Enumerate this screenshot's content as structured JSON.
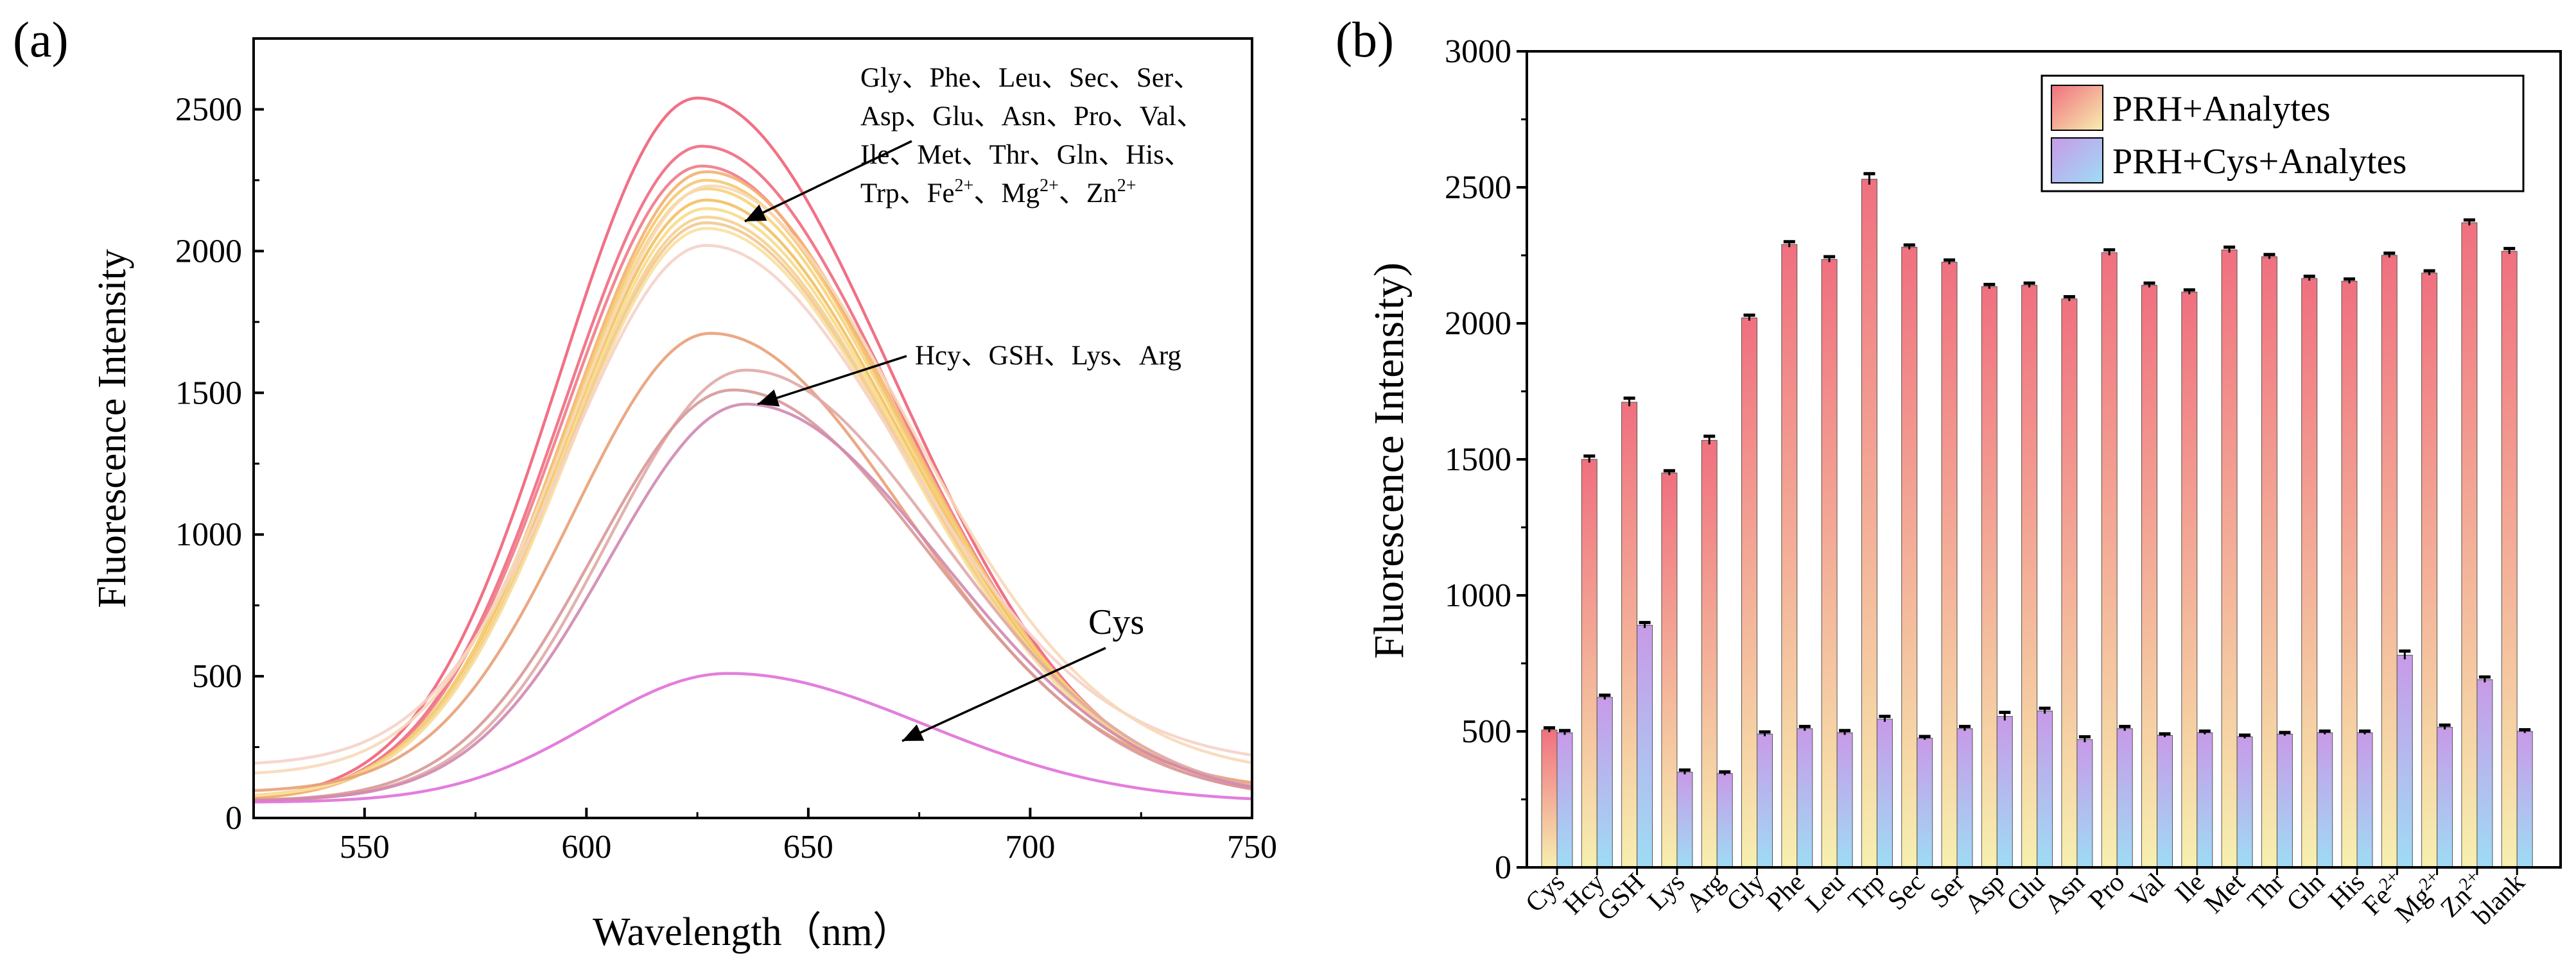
{
  "chart_data": [
    {
      "type": "line",
      "panel_label": "(a)",
      "xlabel": "Wavelength（nm）",
      "ylabel": "Fluorescence Intensity",
      "xlim": [
        525,
        750
      ],
      "ylim": [
        0,
        2750
      ],
      "xticks": [
        550,
        600,
        650,
        700,
        750
      ],
      "yticks": [
        0,
        500,
        1000,
        1500,
        2000,
        2500
      ],
      "grid": false,
      "series": [
        {
          "name": "curve-1",
          "peak_x": 625,
          "peak": 2540,
          "base": 60,
          "color": "#f06078"
        },
        {
          "name": "curve-2",
          "peak_x": 626,
          "peak": 2370,
          "base": 60,
          "color": "#f06a80"
        },
        {
          "name": "curve-3",
          "peak_x": 626,
          "peak": 2300,
          "base": 60,
          "color": "#f07a88"
        },
        {
          "name": "curve-4",
          "peak_x": 627,
          "peak": 2280,
          "base": 60,
          "color": "#f3b070"
        },
        {
          "name": "curve-5",
          "peak_x": 627,
          "peak": 2250,
          "base": 70,
          "color": "#f5c870"
        },
        {
          "name": "curve-6",
          "peak_x": 627,
          "peak": 2220,
          "base": 70,
          "color": "#f6d47a"
        },
        {
          "name": "curve-7",
          "peak_x": 627,
          "peak": 2180,
          "base": 70,
          "color": "#f3c060"
        },
        {
          "name": "curve-8",
          "peak_x": 627,
          "peak": 2150,
          "base": 70,
          "color": "#f7dc8a"
        },
        {
          "name": "curve-9",
          "peak_x": 627,
          "peak": 2120,
          "base": 70,
          "color": "#f5d090"
        },
        {
          "name": "curve-10",
          "peak_x": 627,
          "peak": 2100,
          "base": 70,
          "color": "#f2c890"
        },
        {
          "name": "curve-11",
          "peak_x": 627,
          "peak": 2080,
          "base": 70,
          "color": "#f8e0a0"
        },
        {
          "name": "curve-12",
          "peak_x": 627,
          "peak": 2020,
          "base": 185,
          "color": "#f5d2c8"
        },
        {
          "name": "curve-13",
          "peak_x": 628,
          "peak": 2230,
          "base": 150,
          "color": "#f8d8b8"
        },
        {
          "name": "Hcy",
          "peak_x": 628,
          "peak": 1710,
          "base": 90,
          "color": "#e8a078"
        },
        {
          "name": "GSH",
          "peak_x": 636,
          "peak": 1580,
          "base": 60,
          "color": "#e0a8a8"
        },
        {
          "name": "Lys",
          "peak_x": 633,
          "peak": 1510,
          "base": 60,
          "color": "#d89898"
        },
        {
          "name": "Arg",
          "peak_x": 636,
          "peak": 1460,
          "base": 60,
          "color": "#d088b0"
        },
        {
          "name": "Cys",
          "peak_x": 632,
          "peak": 510,
          "base": 55,
          "color": "#e070d8"
        }
      ],
      "annotations": [
        {
          "text_lines": [
            "Gly、Phe、Leu、Sec、Ser、",
            "Asp、Glu、Asn、Pro、Val、",
            "Ile、Met、Thr、Gln、His、"
          ],
          "last_line": {
            "prefix": "Trp、Fe",
            "sup1": "2+",
            "mid1": "、Mg",
            "sup2": "2+",
            "mid2": "、Zn",
            "sup3": "2+"
          },
          "arrow_to": [
            636,
            2090
          ]
        },
        {
          "text": "Hcy、GSH、Lys、Arg",
          "arrow_to": [
            634,
            1490
          ]
        },
        {
          "text": "Cys",
          "arrow_to": [
            672,
            280
          ]
        }
      ]
    },
    {
      "type": "bar",
      "panel_label": "(b)",
      "xlabel": "",
      "ylabel": "Fluorescence Intensity)",
      "ylim": [
        0,
        3000
      ],
      "yticks": [
        0,
        500,
        1000,
        1500,
        2000,
        2500,
        3000
      ],
      "grid": false,
      "legend_position": "top-right",
      "categories": [
        "Cys",
        "Hcy",
        "GSH",
        "Lys",
        "Arg",
        "Gly",
        "Phe",
        "Leu",
        "Trp",
        "Sec",
        "Ser",
        "Asp",
        "Glu",
        "Asn",
        "Pro",
        "Val",
        "Ile",
        "Met",
        "Thr",
        "Gln",
        "His",
        "Fe2+",
        "Mg2+",
        "Zn2+",
        "blank"
      ],
      "category_labels": [
        {
          "base": "Cys"
        },
        {
          "base": "Hcy"
        },
        {
          "base": "GSH"
        },
        {
          "base": "Lys"
        },
        {
          "base": "Arg"
        },
        {
          "base": "Gly"
        },
        {
          "base": "Phe"
        },
        {
          "base": "Leu"
        },
        {
          "base": "Trp"
        },
        {
          "base": "Sec"
        },
        {
          "base": "Ser"
        },
        {
          "base": "Asp"
        },
        {
          "base": "Glu"
        },
        {
          "base": "Asn"
        },
        {
          "base": "Pro"
        },
        {
          "base": "Val"
        },
        {
          "base": "Ile"
        },
        {
          "base": "Met"
        },
        {
          "base": "Thr"
        },
        {
          "base": "Gln"
        },
        {
          "base": "His"
        },
        {
          "base": "Fe",
          "sup": "2+"
        },
        {
          "base": "Mg",
          "sup": "2+"
        },
        {
          "base": "Zn",
          "sup": "2+"
        },
        {
          "base": "blank"
        }
      ],
      "series": [
        {
          "name": "PRH+Analytes",
          "color_top": "#f0707f",
          "color_bottom": "#f7efb0",
          "values": [
            505,
            1500,
            1710,
            1450,
            1570,
            2020,
            2290,
            2235,
            2530,
            2280,
            2225,
            2135,
            2140,
            2090,
            2260,
            2140,
            2115,
            2270,
            2245,
            2165,
            2155,
            2250,
            2185,
            2370,
            2265
          ],
          "errors": [
            8,
            12,
            15,
            8,
            15,
            10,
            10,
            10,
            20,
            8,
            8,
            8,
            8,
            8,
            10,
            8,
            8,
            10,
            8,
            8,
            8,
            8,
            8,
            10,
            10
          ]
        },
        {
          "name": "PRH+Cys+Analytes",
          "color_top": "#c89ae8",
          "color_bottom": "#9edcf5",
          "values": [
            495,
            625,
            890,
            350,
            345,
            490,
            510,
            495,
            545,
            475,
            510,
            555,
            575,
            470,
            510,
            485,
            495,
            480,
            490,
            495,
            495,
            780,
            515,
            690,
            500
          ],
          "errors": [
            8,
            8,
            10,
            8,
            6,
            8,
            8,
            8,
            10,
            6,
            8,
            15,
            10,
            10,
            8,
            6,
            6,
            6,
            6,
            6,
            6,
            15,
            8,
            10,
            6
          ]
        }
      ]
    }
  ]
}
